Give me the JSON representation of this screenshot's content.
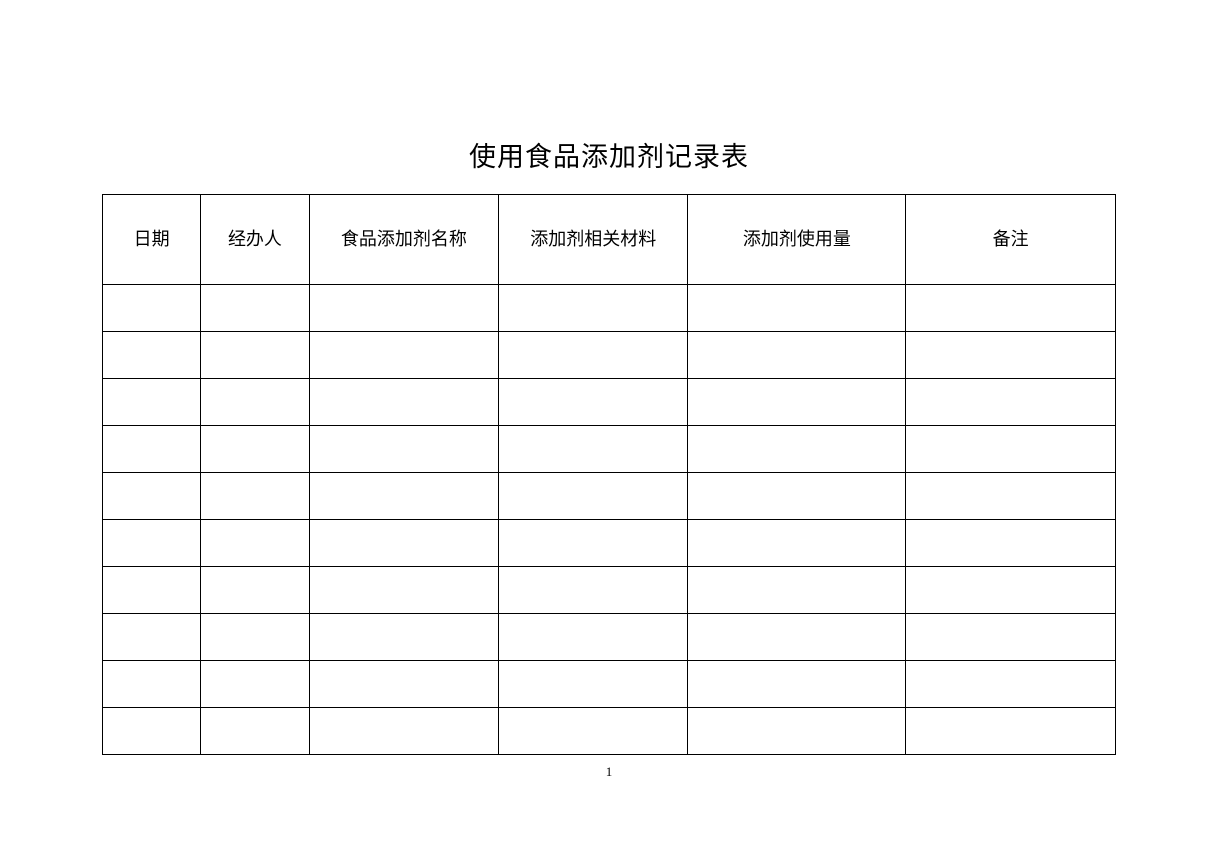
{
  "document": {
    "title": "使用食品添加剂记录表",
    "page_number": "1",
    "background_color": "#ffffff",
    "text_color": "#000000",
    "border_color": "#000000",
    "title_fontsize": 27,
    "header_fontsize": 18,
    "page_number_fontsize": 13
  },
  "table": {
    "type": "table",
    "columns": [
      {
        "label": "日期",
        "width_pct": 9.7
      },
      {
        "label": "经办人",
        "width_pct": 10.7
      },
      {
        "label": "食品添加剂名称",
        "width_pct": 18.7
      },
      {
        "label": "添加剂相关材料",
        "width_pct": 18.7
      },
      {
        "label": "添加剂使用量",
        "width_pct": 21.5
      },
      {
        "label": "备注",
        "width_pct": 20.7
      }
    ],
    "rows": [
      [
        "",
        "",
        "",
        "",
        "",
        ""
      ],
      [
        "",
        "",
        "",
        "",
        "",
        ""
      ],
      [
        "",
        "",
        "",
        "",
        "",
        ""
      ],
      [
        "",
        "",
        "",
        "",
        "",
        ""
      ],
      [
        "",
        "",
        "",
        "",
        "",
        ""
      ],
      [
        "",
        "",
        "",
        "",
        "",
        ""
      ],
      [
        "",
        "",
        "",
        "",
        "",
        ""
      ],
      [
        "",
        "",
        "",
        "",
        "",
        ""
      ],
      [
        "",
        "",
        "",
        "",
        "",
        ""
      ],
      [
        "",
        "",
        "",
        "",
        "",
        ""
      ]
    ],
    "header_row_height": 90,
    "data_row_height": 47
  }
}
